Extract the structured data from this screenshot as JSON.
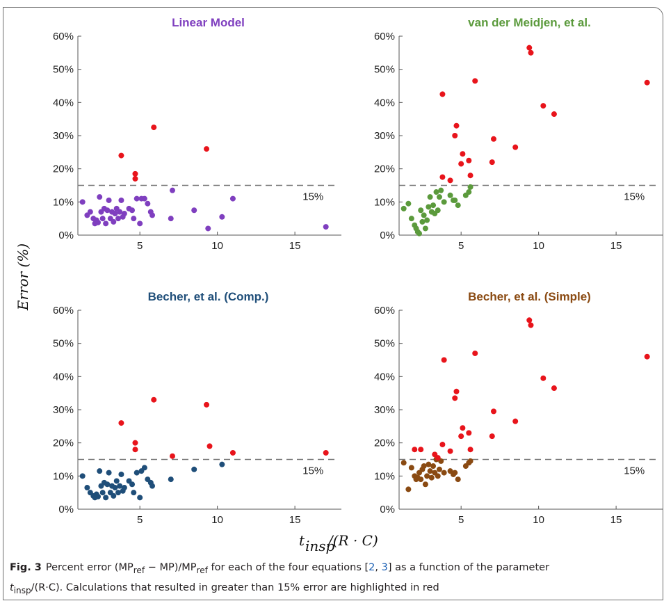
{
  "chart_data": [
    {
      "type": "scatter",
      "title": "Linear Model",
      "title_color": "#7f3fbf",
      "base_color": "#7f3fbf",
      "highlight_color": "#e8141b",
      "threshold": 15,
      "threshold_label": "15%",
      "xlim": [
        1,
        18
      ],
      "ylim": [
        0,
        60
      ],
      "xticks": [
        5,
        10,
        15
      ],
      "yticks": [
        "0%",
        "10%",
        "20%",
        "30%",
        "40%",
        "50%",
        "60%"
      ],
      "points": [
        [
          1.3,
          10
        ],
        [
          1.6,
          6
        ],
        [
          1.8,
          7
        ],
        [
          2.0,
          5
        ],
        [
          2.1,
          3.5
        ],
        [
          2.2,
          4.5
        ],
        [
          2.3,
          3.8
        ],
        [
          2.4,
          11.5
        ],
        [
          2.5,
          7
        ],
        [
          2.6,
          5
        ],
        [
          2.7,
          8
        ],
        [
          2.8,
          3.5
        ],
        [
          2.9,
          7.5
        ],
        [
          3.0,
          10.5
        ],
        [
          3.1,
          5
        ],
        [
          3.2,
          7
        ],
        [
          3.3,
          4
        ],
        [
          3.4,
          6.5
        ],
        [
          3.5,
          8
        ],
        [
          3.6,
          5
        ],
        [
          3.7,
          7
        ],
        [
          3.8,
          10.5
        ],
        [
          3.9,
          5.5
        ],
        [
          4.0,
          6.5
        ],
        [
          4.3,
          8
        ],
        [
          4.5,
          7.5
        ],
        [
          4.6,
          5
        ],
        [
          4.8,
          11
        ],
        [
          5.0,
          3.5
        ],
        [
          5.1,
          11
        ],
        [
          5.3,
          11
        ],
        [
          5.5,
          9.5
        ],
        [
          5.7,
          7
        ],
        [
          5.8,
          6
        ],
        [
          7.0,
          5
        ],
        [
          7.1,
          13.5
        ],
        [
          8.5,
          7.5
        ],
        [
          9.4,
          2
        ],
        [
          10.3,
          5.5
        ],
        [
          11.0,
          11
        ],
        [
          17.0,
          2.5
        ],
        [
          3.8,
          24
        ],
        [
          4.7,
          18.5
        ],
        [
          4.7,
          17
        ],
        [
          5.9,
          32.5
        ],
        [
          9.3,
          26
        ]
      ]
    },
    {
      "type": "scatter",
      "title": "van der Meidjen, et al.",
      "title_color": "#5b9a3c",
      "base_color": "#5b9a3c",
      "highlight_color": "#e8141b",
      "threshold": 15,
      "threshold_label": "15%",
      "xlim": [
        1,
        18
      ],
      "ylim": [
        0,
        60
      ],
      "xticks": [
        5,
        10,
        15
      ],
      "yticks": [
        "0%",
        "10%",
        "20%",
        "30%",
        "40%",
        "50%",
        "60%"
      ],
      "points": [
        [
          1.3,
          8
        ],
        [
          1.6,
          9.5
        ],
        [
          1.8,
          5
        ],
        [
          2.0,
          3
        ],
        [
          2.1,
          2
        ],
        [
          2.2,
          1
        ],
        [
          2.3,
          0.5
        ],
        [
          2.4,
          7.5
        ],
        [
          2.5,
          4
        ],
        [
          2.6,
          6
        ],
        [
          2.7,
          2
        ],
        [
          2.8,
          4.5
        ],
        [
          2.9,
          8.5
        ],
        [
          3.0,
          11.5
        ],
        [
          3.1,
          7
        ],
        [
          3.2,
          9
        ],
        [
          3.3,
          6.5
        ],
        [
          3.4,
          13
        ],
        [
          3.5,
          7.5
        ],
        [
          3.6,
          11.5
        ],
        [
          3.7,
          13.5
        ],
        [
          3.9,
          10
        ],
        [
          4.3,
          12
        ],
        [
          4.5,
          10.5
        ],
        [
          4.6,
          10.5
        ],
        [
          4.8,
          9
        ],
        [
          5.3,
          12
        ],
        [
          5.5,
          13
        ],
        [
          5.6,
          14.5
        ],
        [
          3.8,
          17.5
        ],
        [
          3.8,
          42.5
        ],
        [
          4.3,
          16.5
        ],
        [
          4.6,
          30
        ],
        [
          4.7,
          33
        ],
        [
          5.0,
          21.5
        ],
        [
          5.1,
          24.5
        ],
        [
          5.5,
          22.5
        ],
        [
          5.6,
          18
        ],
        [
          5.9,
          46.5
        ],
        [
          7.0,
          22
        ],
        [
          7.1,
          29
        ],
        [
          8.5,
          26.5
        ],
        [
          9.4,
          56.5
        ],
        [
          9.5,
          55
        ],
        [
          10.3,
          39
        ],
        [
          11.0,
          36.5
        ],
        [
          17.0,
          46
        ]
      ]
    },
    {
      "type": "scatter",
      "title": "Becher, et al. (Comp.)",
      "title_color": "#1f4e79",
      "base_color": "#1f4e79",
      "highlight_color": "#e8141b",
      "threshold": 15,
      "threshold_label": "15%",
      "xlim": [
        1,
        18
      ],
      "ylim": [
        0,
        60
      ],
      "xticks": [
        5,
        10,
        15
      ],
      "yticks": [
        "0%",
        "10%",
        "20%",
        "30%",
        "40%",
        "50%",
        "60%"
      ],
      "points": [
        [
          1.3,
          10
        ],
        [
          1.6,
          6.5
        ],
        [
          1.8,
          5
        ],
        [
          2.0,
          4
        ],
        [
          2.1,
          3.5
        ],
        [
          2.2,
          4.5
        ],
        [
          2.3,
          3.8
        ],
        [
          2.4,
          11.5
        ],
        [
          2.5,
          7
        ],
        [
          2.6,
          5
        ],
        [
          2.7,
          8
        ],
        [
          2.8,
          3.5
        ],
        [
          2.9,
          7.5
        ],
        [
          3.0,
          11
        ],
        [
          3.1,
          5
        ],
        [
          3.2,
          7
        ],
        [
          3.3,
          4
        ],
        [
          3.4,
          6.5
        ],
        [
          3.5,
          8.5
        ],
        [
          3.6,
          5
        ],
        [
          3.7,
          7
        ],
        [
          3.8,
          10.5
        ],
        [
          3.9,
          5.5
        ],
        [
          4.0,
          6.5
        ],
        [
          4.3,
          8.5
        ],
        [
          4.5,
          7.5
        ],
        [
          4.6,
          5
        ],
        [
          4.8,
          11
        ],
        [
          5.0,
          3.5
        ],
        [
          5.1,
          11.5
        ],
        [
          5.3,
          12.5
        ],
        [
          5.5,
          9
        ],
        [
          5.7,
          8
        ],
        [
          5.8,
          7
        ],
        [
          7.0,
          9
        ],
        [
          8.5,
          12
        ],
        [
          10.3,
          13.5
        ],
        [
          3.8,
          26
        ],
        [
          4.7,
          20
        ],
        [
          4.7,
          18
        ],
        [
          5.9,
          33
        ],
        [
          7.1,
          16
        ],
        [
          9.3,
          31.5
        ],
        [
          9.5,
          19
        ],
        [
          11.0,
          17
        ],
        [
          17.0,
          17
        ]
      ]
    },
    {
      "type": "scatter",
      "title": "Becher, et al. (Simple)",
      "title_color": "#8a4a12",
      "base_color": "#8a4a12",
      "highlight_color": "#e8141b",
      "threshold": 15,
      "threshold_label": "15%",
      "xlim": [
        1,
        18
      ],
      "ylim": [
        0,
        60
      ],
      "xticks": [
        5,
        10,
        15
      ],
      "yticks": [
        "0%",
        "10%",
        "20%",
        "30%",
        "40%",
        "50%",
        "60%"
      ],
      "points": [
        [
          1.3,
          14
        ],
        [
          1.6,
          6
        ],
        [
          1.8,
          12.5
        ],
        [
          2.0,
          10
        ],
        [
          2.1,
          9
        ],
        [
          2.2,
          9.5
        ],
        [
          2.3,
          11
        ],
        [
          2.4,
          9
        ],
        [
          2.5,
          12
        ],
        [
          2.6,
          13
        ],
        [
          2.7,
          7.5
        ],
        [
          2.8,
          10
        ],
        [
          2.9,
          13.5
        ],
        [
          3.0,
          11.5
        ],
        [
          3.1,
          9.5
        ],
        [
          3.2,
          13
        ],
        [
          3.3,
          11
        ],
        [
          3.4,
          15
        ],
        [
          3.5,
          10
        ],
        [
          3.6,
          12
        ],
        [
          3.7,
          14.5
        ],
        [
          3.9,
          11
        ],
        [
          4.3,
          11.5
        ],
        [
          4.5,
          10.5
        ],
        [
          4.6,
          11
        ],
        [
          4.8,
          9
        ],
        [
          5.3,
          13
        ],
        [
          5.5,
          14
        ],
        [
          5.6,
          14.5
        ],
        [
          2.0,
          18
        ],
        [
          2.4,
          18
        ],
        [
          3.3,
          16.5
        ],
        [
          3.5,
          15.5
        ],
        [
          3.8,
          19.5
        ],
        [
          3.9,
          45
        ],
        [
          4.3,
          17.5
        ],
        [
          4.6,
          33.5
        ],
        [
          4.7,
          35.5
        ],
        [
          5.0,
          22
        ],
        [
          5.1,
          24.5
        ],
        [
          5.5,
          23
        ],
        [
          5.6,
          18
        ],
        [
          5.9,
          47
        ],
        [
          7.0,
          22
        ],
        [
          7.1,
          29.5
        ],
        [
          8.5,
          26.5
        ],
        [
          9.4,
          57
        ],
        [
          9.5,
          55.5
        ],
        [
          10.3,
          39.5
        ],
        [
          11.0,
          36.5
        ],
        [
          17.0,
          46
        ]
      ]
    }
  ],
  "y_axis_label": "Error (%)",
  "x_axis_label": "t_insp/(R · C)",
  "caption": {
    "fig_label": "Fig. 3",
    "text_1": "Percent error (MP",
    "sub_ref": "ref",
    "text_2": " − MP)/MP",
    "text_3": " for each of the four equations [",
    "ref_2": "2",
    "ref_sep": ", ",
    "ref_3": "3",
    "text_4": "] as a function of the parameter",
    "t_letter": "t",
    "sub_insp": "insp",
    "text_5": "/(R·C). Calculations that resulted in greater than 15% error are highlighted in red"
  }
}
